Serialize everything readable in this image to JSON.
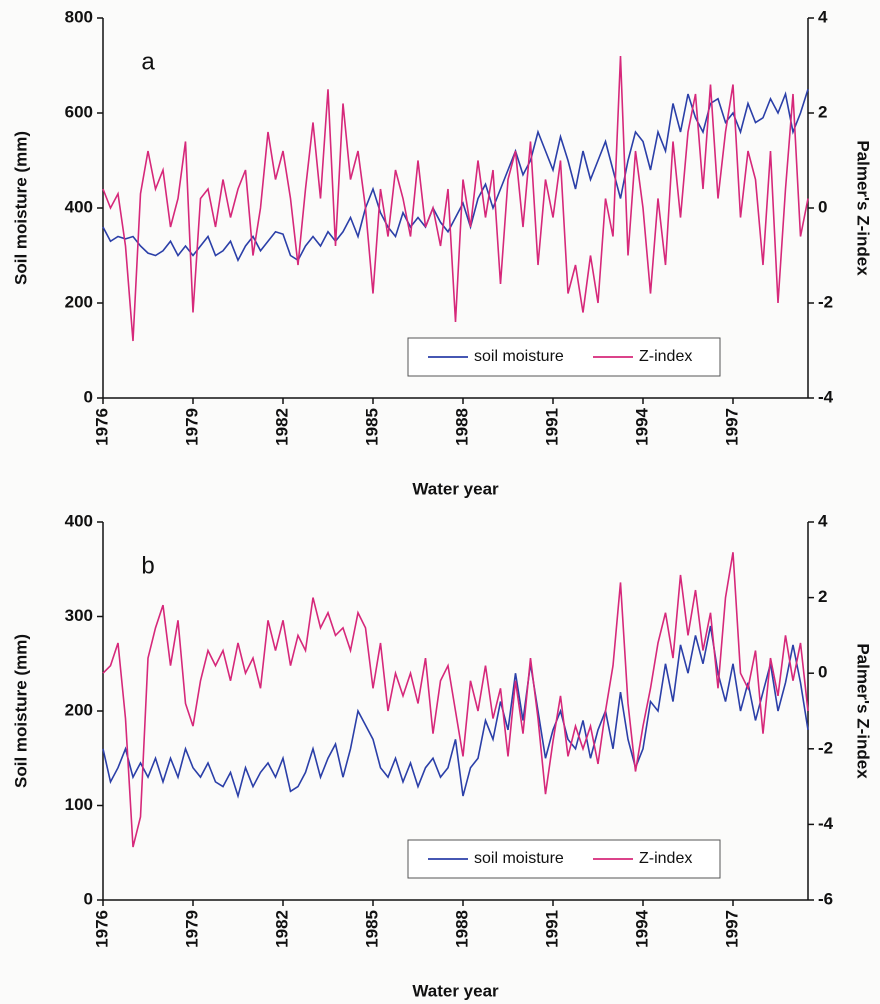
{
  "chart_data": [
    {
      "type": "line",
      "panel_label": "a",
      "x_label": "Water year",
      "y_label": "Soil moisture (mm)",
      "y2_label": "Palmer's Z-index",
      "legend": "lower right",
      "x": [
        1976,
        1976.25,
        1976.5,
        1976.75,
        1977,
        1977.25,
        1977.5,
        1977.75,
        1978,
        1978.25,
        1978.5,
        1978.75,
        1979,
        1979.25,
        1979.5,
        1979.75,
        1980,
        1980.25,
        1980.5,
        1980.75,
        1981,
        1981.25,
        1981.5,
        1981.75,
        1982,
        1982.25,
        1982.5,
        1982.75,
        1983,
        1983.25,
        1983.5,
        1983.75,
        1984,
        1984.25,
        1984.5,
        1984.75,
        1985,
        1985.25,
        1985.5,
        1985.75,
        1986,
        1986.25,
        1986.5,
        1986.75,
        1987,
        1987.25,
        1987.5,
        1987.75,
        1988,
        1988.25,
        1988.5,
        1988.75,
        1989,
        1989.25,
        1989.5,
        1989.75,
        1990,
        1990.25,
        1990.5,
        1990.75,
        1991,
        1991.25,
        1991.5,
        1991.75,
        1992,
        1992.25,
        1992.5,
        1992.75,
        1993,
        1993.25,
        1993.5,
        1993.75,
        1994,
        1994.25,
        1994.5,
        1994.75,
        1995,
        1995.25,
        1995.5,
        1995.75,
        1996,
        1996.25,
        1996.5,
        1996.75,
        1997,
        1997.25,
        1997.5,
        1997.75,
        1998,
        1998.25,
        1998.5,
        1998.75,
        1999,
        1999.25,
        1999.5
      ],
      "xlim": [
        1976,
        1999.5
      ],
      "xticks": [
        1976,
        1979,
        1982,
        1985,
        1988,
        1991,
        1994,
        1997
      ],
      "ylim": [
        0,
        800
      ],
      "yticks": [
        0,
        200,
        400,
        600,
        800
      ],
      "y2lim": [
        -4,
        4
      ],
      "y2ticks": [
        -4,
        -2,
        0,
        2,
        4
      ],
      "series": [
        {
          "name": "soil moisture",
          "color": "#2b3fa8",
          "values": [
            360,
            330,
            340,
            335,
            340,
            320,
            305,
            300,
            310,
            330,
            300,
            320,
            300,
            320,
            340,
            300,
            310,
            330,
            290,
            320,
            340,
            310,
            330,
            350,
            345,
            300,
            290,
            320,
            340,
            320,
            350,
            330,
            350,
            380,
            340,
            400,
            440,
            390,
            360,
            340,
            390,
            360,
            380,
            360,
            400,
            370,
            350,
            380,
            410,
            360,
            420,
            450,
            400,
            440,
            480,
            520,
            470,
            500,
            560,
            520,
            480,
            550,
            500,
            440,
            520,
            460,
            500,
            540,
            480,
            420,
            500,
            560,
            540,
            480,
            560,
            520,
            620,
            560,
            640,
            590,
            560,
            620,
            630,
            580,
            600,
            560,
            620,
            580,
            590,
            630,
            600,
            640,
            560,
            600,
            650
          ]
        },
        {
          "name": "Z-index",
          "color": "#d6287a",
          "axis": "y2",
          "values": [
            0.4,
            0,
            0.3,
            -0.8,
            -2.8,
            0.3,
            1.2,
            0.4,
            0.8,
            -0.4,
            0.2,
            1.4,
            -2.2,
            0.2,
            0.4,
            -0.4,
            0.6,
            -0.2,
            0.4,
            0.8,
            -1.0,
            0,
            1.6,
            0.6,
            1.2,
            0.2,
            -1.2,
            0.4,
            1.8,
            0.2,
            2.5,
            -0.8,
            2.2,
            0.6,
            1.2,
            0,
            -1.8,
            0.4,
            -0.6,
            0.8,
            0.2,
            -0.6,
            1.0,
            -0.4,
            0,
            -0.8,
            0.4,
            -2.4,
            0.6,
            -0.4,
            1.0,
            -0.2,
            0.8,
            -1.6,
            0.6,
            1.2,
            -0.4,
            1.4,
            -1.2,
            0.6,
            -0.2,
            1.0,
            -1.8,
            -1.2,
            -2.2,
            -1.0,
            -2.0,
            0.2,
            -0.6,
            3.2,
            -1.0,
            1.2,
            0,
            -1.8,
            0.2,
            -1.2,
            1.4,
            -0.2,
            1.6,
            2.4,
            0.4,
            2.6,
            0.2,
            1.6,
            2.6,
            -0.2,
            1.2,
            0.6,
            -1.2,
            1.2,
            -2.0,
            0.4,
            2.4,
            -0.6,
            0.2
          ]
        }
      ]
    },
    {
      "type": "line",
      "panel_label": "b",
      "x_label": "Water year",
      "y_label": "Soil moisture (mm)",
      "y2_label": "Palmer's Z-index",
      "legend": "lower right",
      "x": [
        1976,
        1976.25,
        1976.5,
        1976.75,
        1977,
        1977.25,
        1977.5,
        1977.75,
        1978,
        1978.25,
        1978.5,
        1978.75,
        1979,
        1979.25,
        1979.5,
        1979.75,
        1980,
        1980.25,
        1980.5,
        1980.75,
        1981,
        1981.25,
        1981.5,
        1981.75,
        1982,
        1982.25,
        1982.5,
        1982.75,
        1983,
        1983.25,
        1983.5,
        1983.75,
        1984,
        1984.25,
        1984.5,
        1984.75,
        1985,
        1985.25,
        1985.5,
        1985.75,
        1986,
        1986.25,
        1986.5,
        1986.75,
        1987,
        1987.25,
        1987.5,
        1987.75,
        1988,
        1988.25,
        1988.5,
        1988.75,
        1989,
        1989.25,
        1989.5,
        1989.75,
        1990,
        1990.25,
        1990.5,
        1990.75,
        1991,
        1991.25,
        1991.5,
        1991.75,
        1992,
        1992.25,
        1992.5,
        1992.75,
        1993,
        1993.25,
        1993.5,
        1993.75,
        1994,
        1994.25,
        1994.5,
        1994.75,
        1995,
        1995.25,
        1995.5,
        1995.75,
        1996,
        1996.25,
        1996.5,
        1996.75,
        1997,
        1997.25,
        1997.5,
        1997.75,
        1998,
        1998.25,
        1998.5,
        1998.75,
        1999,
        1999.25,
        1999.5
      ],
      "xlim": [
        1976,
        1999.5
      ],
      "xticks": [
        1976,
        1979,
        1982,
        1985,
        1988,
        1991,
        1994,
        1997
      ],
      "ylim": [
        0,
        400
      ],
      "yticks": [
        0,
        100,
        200,
        300,
        400
      ],
      "y2lim": [
        -6,
        4
      ],
      "y2ticks": [
        -6,
        -4,
        -2,
        0,
        2,
        4
      ],
      "series": [
        {
          "name": "soil moisture",
          "color": "#2b3fa8",
          "values": [
            160,
            125,
            140,
            160,
            130,
            145,
            130,
            150,
            125,
            150,
            130,
            160,
            140,
            130,
            145,
            125,
            120,
            135,
            110,
            140,
            120,
            135,
            145,
            130,
            150,
            115,
            120,
            135,
            160,
            130,
            150,
            165,
            130,
            160,
            200,
            185,
            170,
            140,
            130,
            150,
            125,
            145,
            120,
            140,
            150,
            130,
            140,
            170,
            110,
            140,
            150,
            190,
            170,
            210,
            180,
            240,
            190,
            250,
            200,
            150,
            180,
            200,
            170,
            160,
            190,
            150,
            180,
            200,
            160,
            220,
            170,
            140,
            160,
            210,
            200,
            250,
            210,
            270,
            240,
            280,
            250,
            290,
            240,
            210,
            250,
            200,
            230,
            190,
            220,
            250,
            200,
            230,
            270,
            230,
            180
          ]
        },
        {
          "name": "Z-index",
          "color": "#d6287a",
          "axis": "y2",
          "values": [
            0,
            0.2,
            0.8,
            -1.2,
            -4.6,
            -3.8,
            0.4,
            1.2,
            1.8,
            0.2,
            1.4,
            -0.8,
            -1.4,
            -0.2,
            0.6,
            0.2,
            0.6,
            -0.2,
            0.8,
            0,
            0.4,
            -0.4,
            1.4,
            0.6,
            1.4,
            0.2,
            1.0,
            0.6,
            2.0,
            1.2,
            1.6,
            1.0,
            1.2,
            0.6,
            1.6,
            1.2,
            -0.4,
            0.8,
            -1.0,
            0,
            -0.6,
            0,
            -0.8,
            0.4,
            -1.6,
            -0.2,
            0.2,
            -1.0,
            -2.2,
            -0.2,
            -1.0,
            0.2,
            -1.2,
            -0.4,
            -2.2,
            -0.2,
            -1.6,
            0.4,
            -1.2,
            -3.2,
            -1.8,
            -0.6,
            -2.2,
            -1.4,
            -2.0,
            -1.4,
            -2.4,
            -1.0,
            0.2,
            2.4,
            -0.8,
            -2.6,
            -1.4,
            -0.4,
            0.8,
            1.6,
            0.4,
            2.6,
            1.0,
            2.2,
            0.6,
            1.6,
            -0.4,
            2.0,
            3.2,
            0,
            -0.4,
            0.6,
            -1.6,
            0.4,
            -0.6,
            1.0,
            -0.2,
            0.8,
            -1.0
          ]
        }
      ]
    }
  ]
}
